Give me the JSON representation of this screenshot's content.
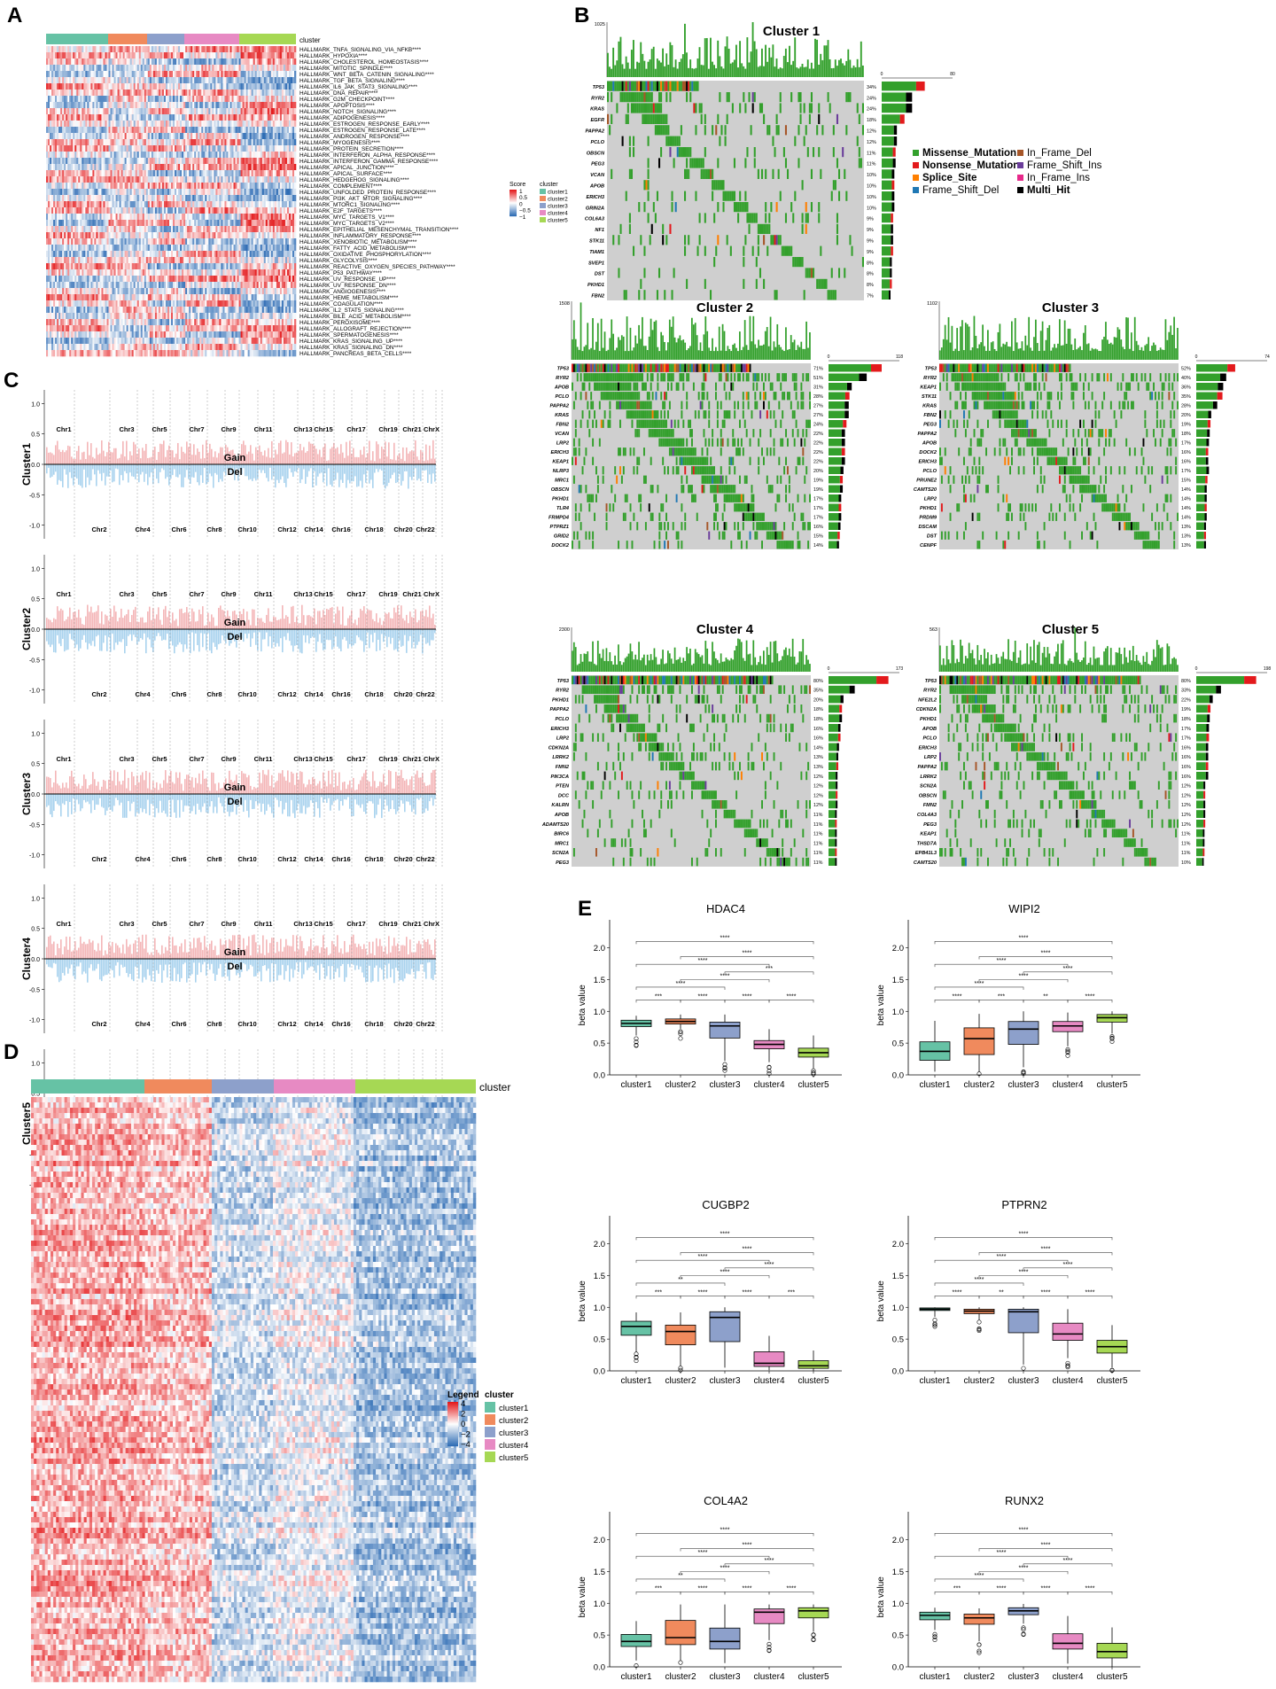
{
  "panel_letters": {
    "A": "A",
    "B": "B",
    "C": "C",
    "D": "D",
    "E": "E"
  },
  "colors": {
    "cluster1": "#66c2a5",
    "cluster2": "#f08a5d",
    "cluster3": "#8da0cb",
    "cluster4": "#e78ac3",
    "cluster5": "#a6d854",
    "heat_high": "#e41a1c",
    "heat_mid": "#ffffff",
    "heat_low": "#2f6db5",
    "gain": "#f4b6b8",
    "del": "#a9d3ee",
    "missense": "#33a02c",
    "nonsense": "#e31a1c",
    "splice": "#ff7f00",
    "fs_del": "#1f78b4",
    "inframe_del": "#a65628",
    "fs_ins": "#6a3d9a",
    "inframe_ins": "#e7298a",
    "multi": "#000000",
    "oncobg": "#cfcfcf"
  },
  "panelA": {
    "cluster_label": "cluster",
    "pathways": [
      "HALLMARK_TNFA_SIGNALING_VIA_NFKB****",
      "HALLMARK_HYPOXIA****",
      "HALLMARK_CHOLESTEROL_HOMEOSTASIS****",
      "HALLMARK_MITOTIC_SPINDLE****",
      "HALLMARK_WNT_BETA_CATENIN_SIGNALING****",
      "HALLMARK_TGF_BETA_SIGNALING****",
      "HALLMARK_IL6_JAK_STAT3_SIGNALING****",
      "HALLMARK_DNA_REPAIR****",
      "HALLMARK_G2M_CHECKPOINT****",
      "HALLMARK_APOPTOSIS****",
      "HALLMARK_NOTCH_SIGNALING****",
      "HALLMARK_ADIPOGENESIS****",
      "HALLMARK_ESTROGEN_RESPONSE_EARLY****",
      "HALLMARK_ESTROGEN_RESPONSE_LATE****",
      "HALLMARK_ANDROGEN_RESPONSE****",
      "HALLMARK_MYOGENESIS****",
      "HALLMARK_PROTEIN_SECRETION****",
      "HALLMARK_INTERFERON_ALPHA_RESPONSE****",
      "HALLMARK_INTERFERON_GAMMA_RESPONSE****",
      "HALLMARK_APICAL_JUNCTION****",
      "HALLMARK_APICAL_SURFACE****",
      "HALLMARK_HEDGEHOG_SIGNALING****",
      "HALLMARK_COMPLEMENT****",
      "HALLMARK_UNFOLDED_PROTEIN_RESPONSE****",
      "HALLMARK_PI3K_AKT_MTOR_SIGNALING****",
      "HALLMARK_MTORC1_SIGNALING****",
      "HALLMARK_E2F_TARGETS****",
      "HALLMARK_MYC_TARGETS_V1****",
      "HALLMARK_MYC_TARGETS_V2****",
      "HALLMARK_EPITHELIAL_MESENCHYMAL_TRANSITION****",
      "HALLMARK_INFLAMMATORY_RESPONSE****",
      "HALLMARK_XENOBIOTIC_METABOLISM****",
      "HALLMARK_FATTY_ACID_METABOLISM****",
      "HALLMARK_OXIDATIVE_PHOSPHORYLATION****",
      "HALLMARK_GLYCOLYSIS****",
      "HALLMARK_REACTIVE_OXYGEN_SPECIES_PATHWAY****",
      "HALLMARK_P53_PATHWAY****",
      "HALLMARK_UV_RESPONSE_UP****",
      "HALLMARK_UV_RESPONSE_DN****",
      "HALLMARK_ANGIOGENESIS****",
      "HALLMARK_HEME_METABOLISM****",
      "HALLMARK_COAGULATION****",
      "HALLMARK_IL2_STAT5_SIGNALING****",
      "HALLMARK_BILE_ACID_METABOLISM****",
      "HALLMARK_PEROXISOME****",
      "HALLMARK_ALLOGRAFT_REJECTION****",
      "HALLMARK_SPERMATOGENESIS****",
      "HALLMARK_KRAS_SIGNALING_UP****",
      "HALLMARK_KRAS_SIGNALING_DN****",
      "HALLMARK_PANCREAS_BETA_CELLS****"
    ],
    "legend_score_title": "Score",
    "legend_score_ticks": [
      "1",
      "0.5",
      "0",
      "−0.5",
      "−1"
    ],
    "legend_cluster_title": "cluster",
    "legend_clusters": [
      "cluster1",
      "cluster2",
      "cluster3",
      "cluster4",
      "cluster5"
    ]
  },
  "panelB": {
    "clusters": [
      {
        "title": "Cluster 1",
        "tmb_max": "1025",
        "bar_max": "80",
        "genes": [
          "TP53",
          "RYR2",
          "KRAS",
          "EGFR",
          "PAPPA2",
          "PCLO",
          "OBSCN",
          "PEG3",
          "VCAN",
          "APOB",
          "ERICH3",
          "GRIN2A",
          "COL6A3",
          "NF1",
          "STK11",
          "TIAM1",
          "SVEP1",
          "DST",
          "PKHD1",
          "FBN2"
        ],
        "pcts": [
          "34%",
          "24%",
          "24%",
          "18%",
          "12%",
          "12%",
          "11%",
          "11%",
          "10%",
          "10%",
          "10%",
          "10%",
          "9%",
          "9%",
          "9%",
          "9%",
          "8%",
          "8%",
          "8%",
          "7%"
        ]
      },
      {
        "title": "Cluster 2",
        "tmb_max": "1508",
        "bar_max": "118",
        "genes": [
          "TP53",
          "RYR2",
          "APOB",
          "PCLO",
          "PAPPA2",
          "KRAS",
          "FBN2",
          "VCAN",
          "LRP2",
          "ERICH3",
          "KEAP1",
          "NLRP3",
          "MRC1",
          "OBSCN",
          "PKHD1",
          "TLR4",
          "FRMPD4",
          "PTPRZ1",
          "GRID2",
          "DOCK2"
        ],
        "pcts": [
          "71%",
          "51%",
          "31%",
          "28%",
          "27%",
          "27%",
          "24%",
          "22%",
          "22%",
          "22%",
          "22%",
          "20%",
          "19%",
          "19%",
          "17%",
          "17%",
          "17%",
          "16%",
          "15%",
          "14%"
        ]
      },
      {
        "title": "Cluster 3",
        "tmb_max": "1102",
        "bar_max": "74",
        "genes": [
          "TP53",
          "RYR2",
          "KEAP1",
          "STK11",
          "KRAS",
          "FBN2",
          "PEG3",
          "PAPPA2",
          "APOB",
          "DOCK2",
          "ERICH3",
          "PCLO",
          "PRUNE2",
          "CAMTS20",
          "LRP2",
          "PKHD1",
          "PRDM9",
          "DSCAM",
          "DST",
          "CENPF"
        ],
        "pcts": [
          "52%",
          "40%",
          "36%",
          "35%",
          "28%",
          "20%",
          "19%",
          "18%",
          "17%",
          "16%",
          "16%",
          "17%",
          "15%",
          "14%",
          "14%",
          "14%",
          "14%",
          "13%",
          "13%",
          "13%"
        ]
      },
      {
        "title": "Cluster 4",
        "tmb_max": "2300",
        "bar_max": "173",
        "genes": [
          "TP53",
          "RYR2",
          "PKHD1",
          "PAPPA2",
          "PCLO",
          "ERICH3",
          "LRP2",
          "CDKN2A",
          "LRRK2",
          "FMN2",
          "PIK3CA",
          "PTEN",
          "DCC",
          "KALRN",
          "APOB",
          "ADAMTS20",
          "BIRC6",
          "MRC1",
          "SCN2A",
          "PEG3"
        ],
        "pcts": [
          "80%",
          "35%",
          "20%",
          "18%",
          "18%",
          "16%",
          "16%",
          "14%",
          "13%",
          "13%",
          "12%",
          "12%",
          "12%",
          "12%",
          "11%",
          "11%",
          "11%",
          "11%",
          "11%",
          "11%"
        ]
      },
      {
        "title": "Cluster 5",
        "tmb_max": "563",
        "bar_max": "198",
        "genes": [
          "TP53",
          "RYR2",
          "NFE2L2",
          "CDKN2A",
          "PKHD1",
          "APOB",
          "PCLO",
          "ERICH3",
          "LRP2",
          "PAPPA2",
          "LRRK2",
          "SCN2A",
          "OBSCN",
          "FMN2",
          "COL4A3",
          "PEG3",
          "KEAP1",
          "THSD7A",
          "EPB41L3",
          "CAMTS20"
        ],
        "pcts": [
          "80%",
          "33%",
          "22%",
          "19%",
          "18%",
          "17%",
          "17%",
          "16%",
          "16%",
          "16%",
          "16%",
          "12%",
          "12%",
          "12%",
          "12%",
          "12%",
          "11%",
          "11%",
          "11%",
          "10%"
        ]
      }
    ],
    "legend": [
      "Missense_Mutation",
      "Nonsense_Mutation",
      "Splice_Site",
      "Frame_Shift_Del",
      "In_Frame_Del",
      "Frame_Shift_Ins",
      "In_Frame_Ins",
      "Multi_Hit"
    ]
  },
  "panelC": {
    "clusters": [
      "Cluster1",
      "Cluster2",
      "Cluster3",
      "Cluster4",
      "Cluster5"
    ],
    "odd_chr": [
      "Chr1",
      "Chr3",
      "Chr5",
      "Chr7",
      "Chr9",
      "Chr11",
      "Chr13",
      "Chr15",
      "Chr17",
      "Chr19",
      "Chr21",
      "ChrX"
    ],
    "even_chr": [
      "Chr2",
      "Chr4",
      "Chr6",
      "Chr8",
      "Chr10",
      "Chr12",
      "Chr14",
      "Chr16",
      "Chr18",
      "Chr20",
      "Chr22"
    ],
    "gain_label": "Gain",
    "del_label": "Del",
    "yticks": [
      "1.0",
      "0.5",
      "0.0",
      "-0.5",
      "-1.0"
    ]
  },
  "panelD": {
    "cluster_label": "cluster",
    "legend_title": "Legend",
    "legend_ticks": [
      "4",
      "2",
      "0",
      "−2",
      "−4"
    ],
    "legend_cluster_title": "cluster",
    "legend_clusters": [
      "cluster1",
      "cluster2",
      "cluster3",
      "cluster4",
      "cluster5"
    ]
  },
  "chart_data": [
    {
      "type": "box",
      "title": "HDAC4",
      "ylabel": "beta value",
      "categories": [
        "cluster1",
        "cluster2",
        "cluster3",
        "cluster4",
        "cluster5"
      ],
      "ylim": [
        0,
        2.0
      ],
      "yticks": [
        "0.0",
        "0.5",
        "1.0",
        "1.5",
        "2.0"
      ],
      "boxes": [
        {
          "q1": 0.76,
          "median": 0.81,
          "q3": 0.86,
          "lo": 0.62,
          "hi": 0.93
        },
        {
          "q1": 0.8,
          "median": 0.84,
          "q3": 0.88,
          "lo": 0.72,
          "hi": 0.95
        },
        {
          "q1": 0.58,
          "median": 0.77,
          "q3": 0.83,
          "lo": 0.22,
          "hi": 0.95
        },
        {
          "q1": 0.41,
          "median": 0.48,
          "q3": 0.54,
          "lo": 0.2,
          "hi": 0.72
        },
        {
          "q1": 0.28,
          "median": 0.35,
          "q3": 0.42,
          "lo": 0.1,
          "hi": 0.62
        }
      ],
      "sig": [
        "***",
        "****",
        "****",
        "****",
        "****",
        "****",
        "***",
        "****",
        "****",
        "****"
      ]
    },
    {
      "type": "box",
      "title": "WIPI2",
      "ylabel": "beta value",
      "categories": [
        "cluster1",
        "cluster2",
        "cluster3",
        "cluster4",
        "cluster5"
      ],
      "ylim": [
        0,
        2.0
      ],
      "yticks": [
        "0.0",
        "0.5",
        "1.0",
        "1.5",
        "2.0"
      ],
      "boxes": [
        {
          "q1": 0.23,
          "median": 0.37,
          "q3": 0.52,
          "lo": 0.05,
          "hi": 0.85
        },
        {
          "q1": 0.32,
          "median": 0.57,
          "q3": 0.74,
          "lo": 0.05,
          "hi": 0.96
        },
        {
          "q1": 0.48,
          "median": 0.72,
          "q3": 0.84,
          "lo": 0.12,
          "hi": 1.0
        },
        {
          "q1": 0.68,
          "median": 0.77,
          "q3": 0.84,
          "lo": 0.45,
          "hi": 0.98
        },
        {
          "q1": 0.83,
          "median": 0.9,
          "q3": 0.95,
          "lo": 0.65,
          "hi": 1.0
        }
      ],
      "sig": [
        "****",
        "***",
        "**",
        "****",
        "****",
        "****",
        "****",
        "****",
        "****",
        "****"
      ]
    },
    {
      "type": "box",
      "title": "CUGBP2",
      "ylabel": "beta value",
      "categories": [
        "cluster1",
        "cluster2",
        "cluster3",
        "cluster4",
        "cluster5"
      ],
      "ylim": [
        0,
        2.0
      ],
      "yticks": [
        "0.0",
        "0.5",
        "1.0",
        "1.5",
        "2.0"
      ],
      "boxes": [
        {
          "q1": 0.56,
          "median": 0.7,
          "q3": 0.78,
          "lo": 0.3,
          "hi": 0.92
        },
        {
          "q1": 0.41,
          "median": 0.62,
          "q3": 0.72,
          "lo": 0.08,
          "hi": 0.92
        },
        {
          "q1": 0.46,
          "median": 0.84,
          "q3": 0.93,
          "lo": 0.05,
          "hi": 1.0
        },
        {
          "q1": 0.07,
          "median": 0.12,
          "q3": 0.3,
          "lo": 0.01,
          "hi": 0.55
        },
        {
          "q1": 0.04,
          "median": 0.08,
          "q3": 0.16,
          "lo": 0.0,
          "hi": 0.32
        }
      ],
      "sig": [
        "***",
        "****",
        "****",
        "***",
        "**",
        "****",
        "****",
        "****",
        "****",
        "****"
      ]
    },
    {
      "type": "box",
      "title": "PTPRN2",
      "ylabel": "beta value",
      "categories": [
        "cluster1",
        "cluster2",
        "cluster3",
        "cluster4",
        "cluster5"
      ],
      "ylim": [
        0,
        2.0
      ],
      "yticks": [
        "0.0",
        "0.5",
        "1.0",
        "1.5",
        "2.0"
      ],
      "boxes": [
        {
          "q1": 0.95,
          "median": 0.97,
          "q3": 0.99,
          "lo": 0.85,
          "hi": 1.0
        },
        {
          "q1": 0.9,
          "median": 0.94,
          "q3": 0.97,
          "lo": 0.8,
          "hi": 1.0
        },
        {
          "q1": 0.6,
          "median": 0.93,
          "q3": 0.97,
          "lo": 0.1,
          "hi": 1.0
        },
        {
          "q1": 0.48,
          "median": 0.58,
          "q3": 0.75,
          "lo": 0.2,
          "hi": 0.97
        },
        {
          "q1": 0.28,
          "median": 0.38,
          "q3": 0.48,
          "lo": 0.05,
          "hi": 0.72
        }
      ],
      "sig": [
        "****",
        "**",
        "****",
        "****",
        "****",
        "****",
        "****",
        "****",
        "****",
        "****"
      ]
    },
    {
      "type": "box",
      "title": "COL4A2",
      "ylabel": "beta value",
      "categories": [
        "cluster1",
        "cluster2",
        "cluster3",
        "cluster4",
        "cluster5"
      ],
      "ylim": [
        0,
        2.0
      ],
      "yticks": [
        "0.0",
        "0.5",
        "1.0",
        "1.5",
        "2.0"
      ],
      "boxes": [
        {
          "q1": 0.32,
          "median": 0.4,
          "q3": 0.51,
          "lo": 0.1,
          "hi": 0.72
        },
        {
          "q1": 0.35,
          "median": 0.46,
          "q3": 0.73,
          "lo": 0.1,
          "hi": 0.98
        },
        {
          "q1": 0.28,
          "median": 0.4,
          "q3": 0.61,
          "lo": 0.06,
          "hi": 0.98
        },
        {
          "q1": 0.68,
          "median": 0.86,
          "q3": 0.91,
          "lo": 0.42,
          "hi": 0.98
        },
        {
          "q1": 0.77,
          "median": 0.88,
          "q3": 0.93,
          "lo": 0.55,
          "hi": 0.98
        }
      ],
      "sig": [
        "***",
        "****",
        "****",
        "****",
        "**",
        "****",
        "****",
        "****",
        "****",
        "****"
      ]
    },
    {
      "type": "box",
      "title": "RUNX2",
      "ylabel": "beta value",
      "categories": [
        "cluster1",
        "cluster2",
        "cluster3",
        "cluster4",
        "cluster5"
      ],
      "ylim": [
        0,
        2.0
      ],
      "yticks": [
        "0.0",
        "0.5",
        "1.0",
        "1.5",
        "2.0"
      ],
      "boxes": [
        {
          "q1": 0.74,
          "median": 0.81,
          "q3": 0.86,
          "lo": 0.58,
          "hi": 0.93
        },
        {
          "q1": 0.67,
          "median": 0.77,
          "q3": 0.83,
          "lo": 0.4,
          "hi": 0.92
        },
        {
          "q1": 0.82,
          "median": 0.88,
          "q3": 0.93,
          "lo": 0.68,
          "hi": 0.99
        },
        {
          "q1": 0.28,
          "median": 0.37,
          "q3": 0.52,
          "lo": 0.05,
          "hi": 0.8
        },
        {
          "q1": 0.14,
          "median": 0.24,
          "q3": 0.37,
          "lo": 0.0,
          "hi": 0.62
        }
      ],
      "sig": [
        "***",
        "****",
        "****",
        "****",
        "****",
        "****",
        "****",
        "****",
        "****",
        "****"
      ]
    }
  ]
}
